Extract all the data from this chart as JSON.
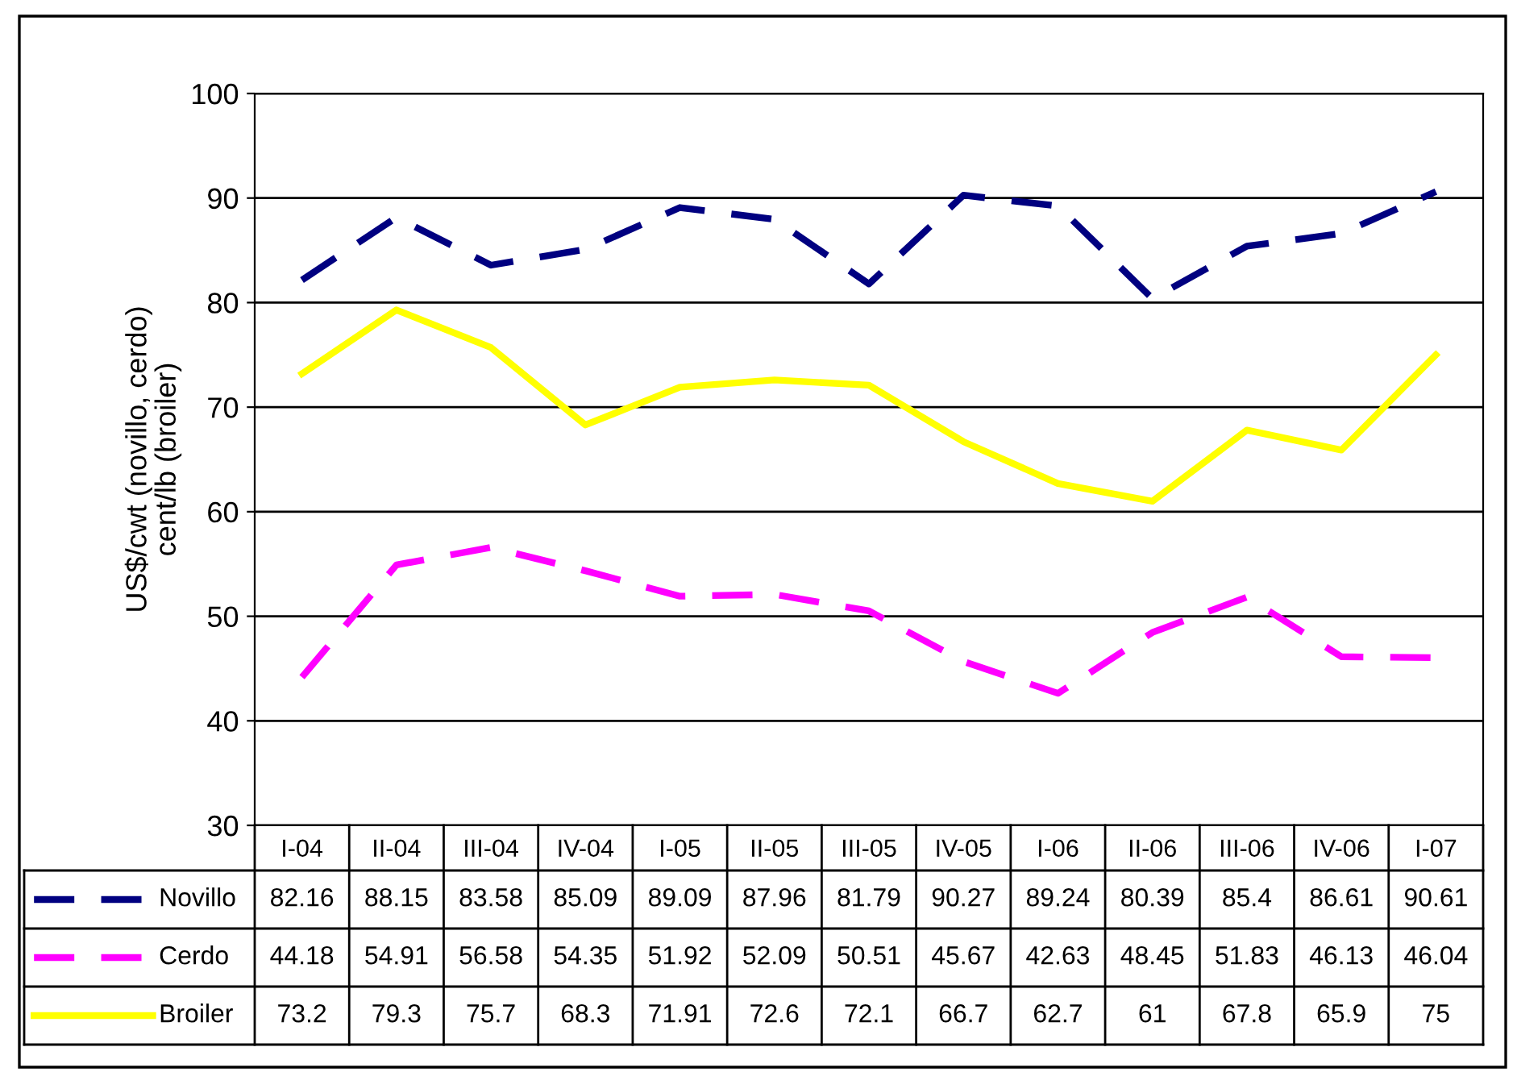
{
  "chart_data": {
    "type": "line",
    "ylabel": "US$/cwt (novillo, cerdo)\ncent/lb (broiler)",
    "categories": [
      "I-04",
      "II-04",
      "III-04",
      "IV-04",
      "I-05",
      "II-05",
      "III-05",
      "IV-05",
      "I-06",
      "II-06",
      "III-06",
      "IV-06",
      "I-07"
    ],
    "series": [
      {
        "name": "Novillo",
        "color": "#000080",
        "line_style": "dashed",
        "values": [
          82.16,
          88.15,
          83.58,
          85.09,
          89.09,
          87.96,
          81.79,
          90.27,
          89.24,
          80.39,
          85.4,
          86.61,
          90.61
        ]
      },
      {
        "name": "Cerdo",
        "color": "#ff00ff",
        "line_style": "dashed",
        "values": [
          44.18,
          54.91,
          56.58,
          54.35,
          51.92,
          52.09,
          50.51,
          45.67,
          42.63,
          48.45,
          51.83,
          46.13,
          46.04
        ]
      },
      {
        "name": "Broiler",
        "color": "#ffff00",
        "line_style": "solid",
        "values": [
          73.2,
          79.3,
          75.7,
          68.3,
          71.91,
          72.6,
          72.1,
          66.7,
          62.7,
          61,
          67.8,
          65.9,
          75
        ]
      }
    ],
    "ylim": [
      30,
      100
    ],
    "yticks": [
      30,
      40,
      50,
      60,
      70,
      80,
      90,
      100
    ],
    "grid": "y",
    "data_labels": true,
    "legend": "bottom"
  }
}
